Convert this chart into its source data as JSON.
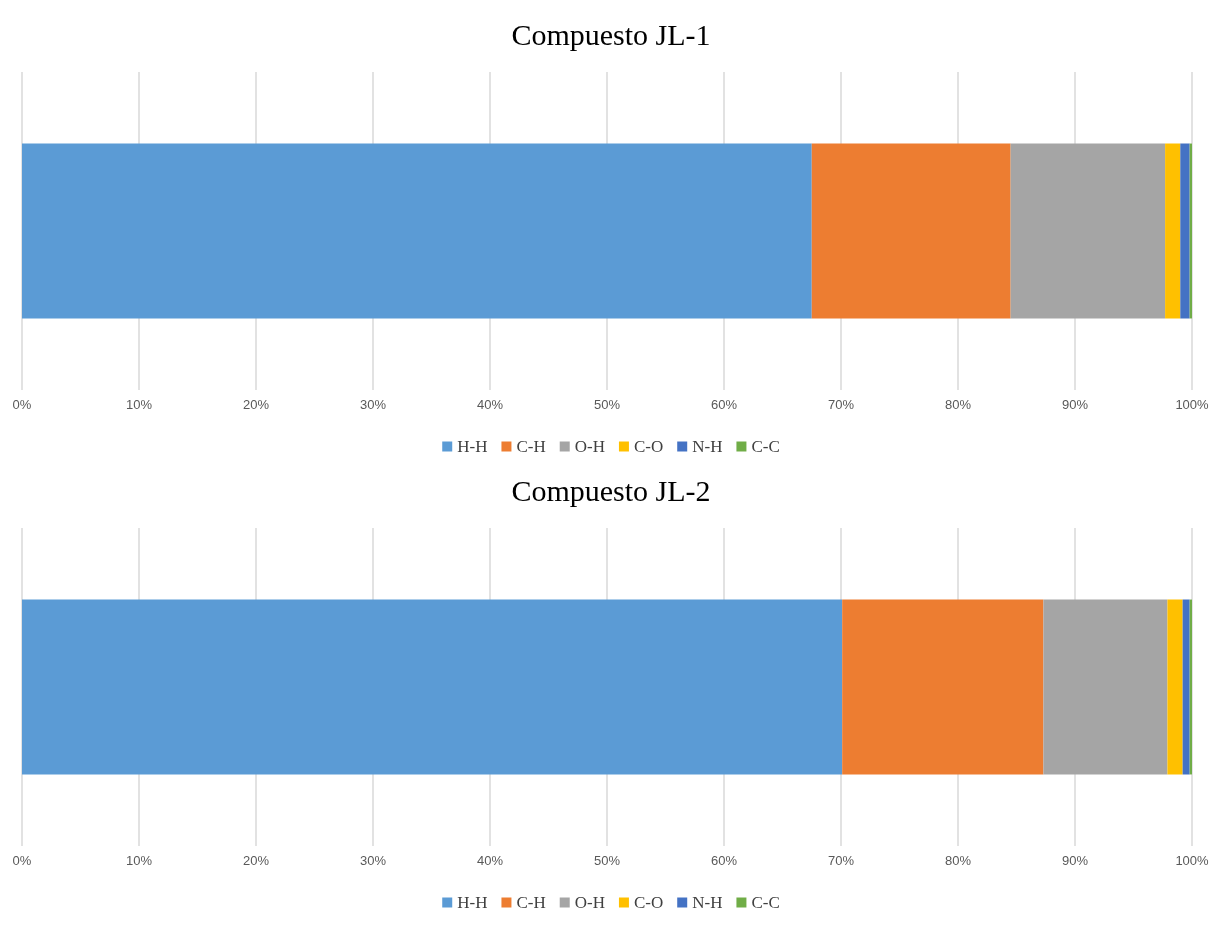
{
  "chart_data": [
    {
      "type": "bar",
      "title": "Compuesto JL-1",
      "orientation": "horizontal",
      "stacked": true,
      "categories": [
        null
      ],
      "xlim": [
        0,
        100
      ],
      "xticks": [
        {
          "value": 0,
          "label": "0%"
        },
        {
          "value": 10,
          "label": "10%"
        },
        {
          "value": 20,
          "label": "20%"
        },
        {
          "value": 30,
          "label": "30%"
        },
        {
          "value": 40,
          "label": "40%"
        },
        {
          "value": 50,
          "label": "50%"
        },
        {
          "value": 60,
          "label": "60%"
        },
        {
          "value": 70,
          "label": "70%"
        },
        {
          "value": 80,
          "label": "80%"
        },
        {
          "value": 90,
          "label": "90%"
        },
        {
          "value": 100,
          "label": "100%"
        }
      ],
      "grid": "x",
      "legend": "bottom",
      "series": [
        {
          "name": "H-H",
          "color": "#5b9bd5",
          "values": [
            67.5
          ]
        },
        {
          "name": "C-H",
          "color": "#ed7d31",
          "values": [
            17.0
          ]
        },
        {
          "name": "O-H",
          "color": "#a5a5a5",
          "values": [
            13.2
          ]
        },
        {
          "name": "C-O",
          "color": "#ffc000",
          "values": [
            1.3
          ]
        },
        {
          "name": "N-H",
          "color": "#4472c4",
          "values": [
            0.8
          ]
        },
        {
          "name": "C-C",
          "color": "#70ad47",
          "values": [
            0.2
          ]
        }
      ]
    },
    {
      "type": "bar",
      "title": "Compuesto JL-2",
      "orientation": "horizontal",
      "stacked": true,
      "categories": [
        null
      ],
      "xlim": [
        0,
        100
      ],
      "xticks": [
        {
          "value": 0,
          "label": "0%"
        },
        {
          "value": 10,
          "label": "10%"
        },
        {
          "value": 20,
          "label": "20%"
        },
        {
          "value": 30,
          "label": "30%"
        },
        {
          "value": 40,
          "label": "40%"
        },
        {
          "value": 50,
          "label": "50%"
        },
        {
          "value": 60,
          "label": "60%"
        },
        {
          "value": 70,
          "label": "70%"
        },
        {
          "value": 80,
          "label": "80%"
        },
        {
          "value": 90,
          "label": "90%"
        },
        {
          "value": 100,
          "label": "100%"
        }
      ],
      "grid": "x",
      "legend": "bottom",
      "series": [
        {
          "name": "H-H",
          "color": "#5b9bd5",
          "values": [
            70.1
          ]
        },
        {
          "name": "C-H",
          "color": "#ed7d31",
          "values": [
            17.2
          ]
        },
        {
          "name": "O-H",
          "color": "#a5a5a5",
          "values": [
            10.6
          ]
        },
        {
          "name": "C-O",
          "color": "#ffc000",
          "values": [
            1.3
          ]
        },
        {
          "name": "N-H",
          "color": "#4472c4",
          "values": [
            0.6
          ]
        },
        {
          "name": "C-C",
          "color": "#70ad47",
          "values": [
            0.2
          ]
        }
      ]
    }
  ]
}
